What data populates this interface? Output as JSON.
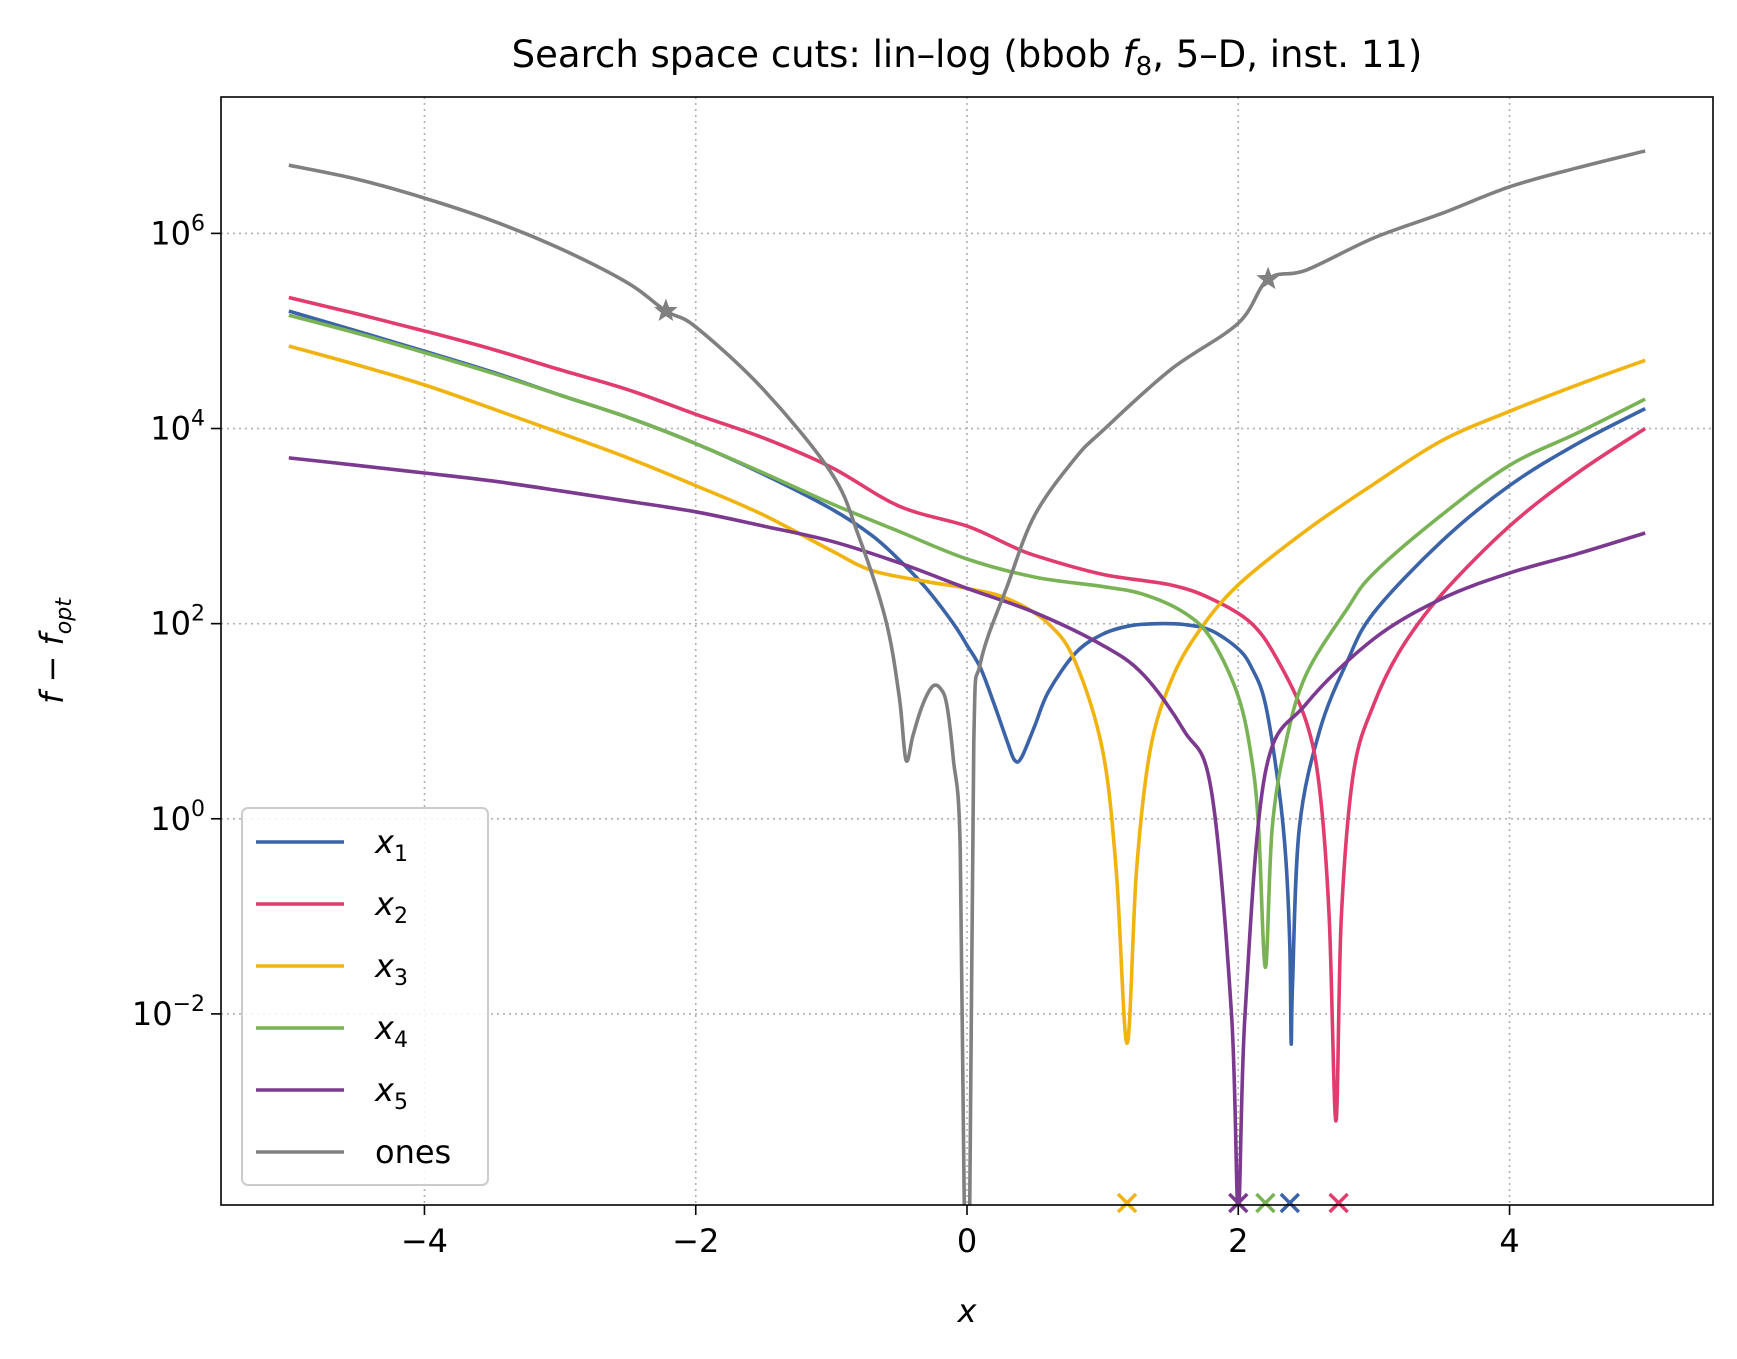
{
  "chart_data": {
    "type": "line",
    "title": "Search space cuts: lin–log (bbob",
    "title_fn": "f",
    "title_fn_sub": "8",
    "title_tail": ", 5–D, inst. 11)",
    "xlabel": "x",
    "ylabel": "f − f",
    "ylabel_sub": "opt",
    "yscale": "log",
    "xlim": [
      -5.5,
      5.5
    ],
    "ylim": [
      0.00011,
      25000000.0
    ],
    "grid": true,
    "legend_position": "lower-left",
    "x_ticks": [
      -4,
      -2,
      0,
      2,
      4
    ],
    "x_tick_labels": [
      "−4",
      "−2",
      "0",
      "2",
      "4"
    ],
    "y_ticks": [
      0.01,
      1,
      100,
      10000,
      1000000
    ],
    "y_tick_base": [
      "10",
      "10",
      "10",
      "10",
      "10"
    ],
    "y_tick_exp": [
      "−2",
      "0",
      "2",
      "4",
      "6"
    ],
    "series": [
      {
        "name": "x1",
        "label_base": "x",
        "label_sub": "1",
        "color": "#3a63a8",
        "points": [
          [
            -5,
            160000
          ],
          [
            -4.5,
            100000
          ],
          [
            -4,
            62000
          ],
          [
            -3.5,
            38000
          ],
          [
            -3,
            22000
          ],
          [
            -2.5,
            13000
          ],
          [
            -2,
            7000
          ],
          [
            -1.5,
            3400
          ],
          [
            -1,
            1500
          ],
          [
            -0.7,
            800
          ],
          [
            -0.5,
            450
          ],
          [
            -0.3,
            230
          ],
          [
            -0.1,
            100
          ],
          [
            0,
            60
          ],
          [
            0.1,
            35
          ],
          [
            0.2,
            15
          ],
          [
            0.3,
            6
          ],
          [
            0.35,
            4
          ],
          [
            0.4,
            4.2
          ],
          [
            0.5,
            9
          ],
          [
            0.6,
            20
          ],
          [
            0.8,
            50
          ],
          [
            1,
            78
          ],
          [
            1.2,
            95
          ],
          [
            1.4,
            100
          ],
          [
            1.6,
            98
          ],
          [
            1.8,
            85
          ],
          [
            2,
            55
          ],
          [
            2.1,
            35
          ],
          [
            2.2,
            15
          ],
          [
            2.3,
            2
          ],
          [
            2.35,
            0.4
          ],
          [
            2.38,
            0.05
          ],
          [
            2.39,
            0.005
          ],
          [
            2.4,
            0.02
          ],
          [
            2.45,
            0.8
          ],
          [
            2.6,
            8
          ],
          [
            2.8,
            40
          ],
          [
            3,
            130
          ],
          [
            3.5,
            700
          ],
          [
            4,
            2600
          ],
          [
            4.5,
            7000
          ],
          [
            5,
            16000
          ]
        ]
      },
      {
        "name": "x2",
        "label_base": "x",
        "label_sub": "2",
        "color": "#e03c6e",
        "points": [
          [
            -5,
            220000
          ],
          [
            -4.5,
            150000
          ],
          [
            -4,
            100000
          ],
          [
            -3.5,
            65000
          ],
          [
            -3,
            40000
          ],
          [
            -2.5,
            25000
          ],
          [
            -2,
            14000
          ],
          [
            -1.5,
            8000
          ],
          [
            -1,
            4000
          ],
          [
            -0.5,
            1600
          ],
          [
            0,
            1000
          ],
          [
            0.3,
            650
          ],
          [
            0.5,
            500
          ],
          [
            1,
            320
          ],
          [
            1.5,
            250
          ],
          [
            1.8,
            180
          ],
          [
            2.1,
            100
          ],
          [
            2.3,
            40
          ],
          [
            2.5,
            10
          ],
          [
            2.6,
            2
          ],
          [
            2.67,
            0.1
          ],
          [
            2.72,
            0.0008
          ],
          [
            2.76,
            0.1
          ],
          [
            2.85,
            3
          ],
          [
            3,
            15
          ],
          [
            3.2,
            55
          ],
          [
            3.5,
            200
          ],
          [
            4,
            1000
          ],
          [
            4.5,
            3500
          ],
          [
            5,
            10000
          ]
        ]
      },
      {
        "name": "x3",
        "label_base": "x",
        "label_sub": "3",
        "color": "#f0b310",
        "points": [
          [
            -5,
            70000
          ],
          [
            -4.5,
            45000
          ],
          [
            -4,
            28000
          ],
          [
            -3.5,
            16000
          ],
          [
            -3,
            9000
          ],
          [
            -2.5,
            5000
          ],
          [
            -2,
            2600
          ],
          [
            -1.5,
            1300
          ],
          [
            -1,
            560
          ],
          [
            -0.7,
            350
          ],
          [
            -0.3,
            270
          ],
          [
            0,
            230
          ],
          [
            0.3,
            180
          ],
          [
            0.6,
            100
          ],
          [
            0.8,
            40
          ],
          [
            1,
            5
          ],
          [
            1.1,
            0.3
          ],
          [
            1.18,
            0.005
          ],
          [
            1.25,
            0.3
          ],
          [
            1.35,
            5
          ],
          [
            1.5,
            25
          ],
          [
            1.7,
            80
          ],
          [
            2,
            250
          ],
          [
            2.5,
            900
          ],
          [
            3,
            2700
          ],
          [
            3.5,
            7500
          ],
          [
            4,
            15000
          ],
          [
            4.5,
            28000
          ],
          [
            5,
            50000
          ]
        ]
      },
      {
        "name": "x4",
        "label_base": "x",
        "label_sub": "4",
        "color": "#7ab356",
        "points": [
          [
            -5,
            145000
          ],
          [
            -4.5,
            95000
          ],
          [
            -4,
            60000
          ],
          [
            -3.5,
            37000
          ],
          [
            -3,
            22000
          ],
          [
            -2.5,
            13000
          ],
          [
            -2,
            7000
          ],
          [
            -1.5,
            3500
          ],
          [
            -1,
            1700
          ],
          [
            -0.5,
            880
          ],
          [
            0,
            460
          ],
          [
            0.5,
            300
          ],
          [
            1,
            240
          ],
          [
            1.3,
            200
          ],
          [
            1.6,
            130
          ],
          [
            1.8,
            70
          ],
          [
            2,
            18
          ],
          [
            2.1,
            4
          ],
          [
            2.15,
            0.8
          ],
          [
            2.2,
            0.03
          ],
          [
            2.25,
            0.8
          ],
          [
            2.35,
            6
          ],
          [
            2.5,
            30
          ],
          [
            2.8,
            140
          ],
          [
            3,
            330
          ],
          [
            3.5,
            1300
          ],
          [
            4,
            4200
          ],
          [
            4.5,
            9000
          ],
          [
            5,
            20000
          ]
        ]
      },
      {
        "name": "x5",
        "label_base": "x",
        "label_sub": "5",
        "color": "#7b3a8f",
        "points": [
          [
            -5,
            5000
          ],
          [
            -4.5,
            4200
          ],
          [
            -4,
            3500
          ],
          [
            -3.5,
            2900
          ],
          [
            -3,
            2300
          ],
          [
            -2.5,
            1800
          ],
          [
            -2,
            1400
          ],
          [
            -1.5,
            1000
          ],
          [
            -1,
            700
          ],
          [
            -0.5,
            420
          ],
          [
            0,
            230
          ],
          [
            0.5,
            130
          ],
          [
            1,
            60
          ],
          [
            1.3,
            30
          ],
          [
            1.6,
            8
          ],
          [
            1.8,
            2
          ],
          [
            1.95,
            0.01
          ],
          [
            2,
            0.0001
          ],
          [
            2.05,
            0.01
          ],
          [
            2.2,
            3
          ],
          [
            2.5,
            15
          ],
          [
            3,
            70
          ],
          [
            3.5,
            180
          ],
          [
            4,
            330
          ],
          [
            4.5,
            520
          ],
          [
            5,
            850
          ]
        ]
      },
      {
        "name": "ones",
        "label_base": "ones",
        "label_sub": "",
        "color": "#808080",
        "points": [
          [
            -5,
            5000000
          ],
          [
            -4.5,
            3600000
          ],
          [
            -4,
            2300000
          ],
          [
            -3.5,
            1350000
          ],
          [
            -3,
            700000
          ],
          [
            -2.5,
            310000
          ],
          [
            -2.22,
            160000
          ],
          [
            -2,
            110000
          ],
          [
            -1.5,
            25000
          ],
          [
            -1,
            3500
          ],
          [
            -0.8,
            800
          ],
          [
            -0.6,
            110
          ],
          [
            -0.5,
            18
          ],
          [
            -0.45,
            4
          ],
          [
            -0.4,
            7
          ],
          [
            -0.35,
            12
          ],
          [
            -0.3,
            18
          ],
          [
            -0.25,
            23
          ],
          [
            -0.2,
            22
          ],
          [
            -0.15,
            15
          ],
          [
            -0.1,
            4
          ],
          [
            -0.05,
            0.5
          ],
          [
            -0.02,
            0.0001
          ],
          [
            0.02,
            0.0001
          ],
          [
            0.05,
            6
          ],
          [
            0.1,
            40
          ],
          [
            0.3,
            250
          ],
          [
            0.5,
            1300
          ],
          [
            0.8,
            5000
          ],
          [
            1,
            9500
          ],
          [
            1.5,
            40000
          ],
          [
            2,
            120000
          ],
          [
            2.22,
            340000
          ],
          [
            2.5,
            420000
          ],
          [
            3,
            900000
          ],
          [
            3.5,
            1600000
          ],
          [
            4,
            3000000
          ],
          [
            4.5,
            4700000
          ],
          [
            5,
            7000000
          ]
        ]
      }
    ],
    "star_markers": [
      [
        -2.22,
        160000
      ],
      [
        2.22,
        340000
      ]
    ],
    "optimum_markers": [
      {
        "series": "x3",
        "x": 1.18
      },
      {
        "series": "x5",
        "x": 2.0
      },
      {
        "series": "x4",
        "x": 2.2
      },
      {
        "series": "x1",
        "x": 2.38
      },
      {
        "series": "x2",
        "x": 2.74
      }
    ]
  }
}
